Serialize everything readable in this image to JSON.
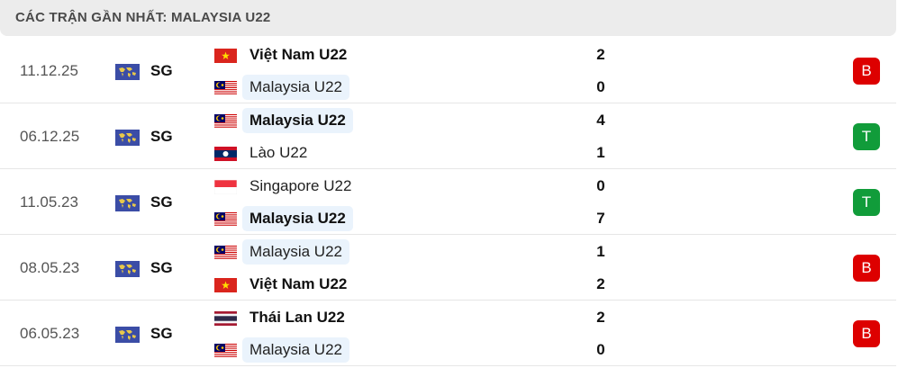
{
  "header": {
    "title": "CÁC TRẬN GẦN NHẤT: MALAYSIA U22"
  },
  "colors": {
    "loss": "#dd0000",
    "win": "#119c3a",
    "highlight": "#eaf3fc",
    "competition_icon": "#3b4da6"
  },
  "matches": [
    {
      "date": "11.12.25",
      "competition": "SG",
      "competition_icon": "world-map-icon",
      "home": {
        "name": "Việt Nam U22",
        "flag": "vn",
        "score": "2",
        "bold": true,
        "highlight": false
      },
      "away": {
        "name": "Malaysia U22",
        "flag": "my",
        "score": "0",
        "bold": false,
        "highlight": true
      },
      "result": "B",
      "result_color": "#dd0000"
    },
    {
      "date": "06.12.25",
      "competition": "SG",
      "competition_icon": "world-map-icon",
      "home": {
        "name": "Malaysia U22",
        "flag": "my",
        "score": "4",
        "bold": true,
        "highlight": true
      },
      "away": {
        "name": "Lào U22",
        "flag": "la",
        "score": "1",
        "bold": false,
        "highlight": false
      },
      "result": "T",
      "result_color": "#119c3a"
    },
    {
      "date": "11.05.23",
      "competition": "SG",
      "competition_icon": "world-map-icon",
      "home": {
        "name": "Singapore U22",
        "flag": "sg",
        "score": "0",
        "bold": false,
        "highlight": false
      },
      "away": {
        "name": "Malaysia U22",
        "flag": "my",
        "score": "7",
        "bold": true,
        "highlight": true
      },
      "result": "T",
      "result_color": "#119c3a"
    },
    {
      "date": "08.05.23",
      "competition": "SG",
      "competition_icon": "world-map-icon",
      "home": {
        "name": "Malaysia U22",
        "flag": "my",
        "score": "1",
        "bold": false,
        "highlight": true
      },
      "away": {
        "name": "Việt Nam U22",
        "flag": "vn",
        "score": "2",
        "bold": true,
        "highlight": false
      },
      "result": "B",
      "result_color": "#dd0000"
    },
    {
      "date": "06.05.23",
      "competition": "SG",
      "competition_icon": "world-map-icon",
      "home": {
        "name": "Thái Lan U22",
        "flag": "th",
        "score": "2",
        "bold": true,
        "highlight": false
      },
      "away": {
        "name": "Malaysia U22",
        "flag": "my",
        "score": "0",
        "bold": false,
        "highlight": true
      },
      "result": "B",
      "result_color": "#dd0000"
    }
  ]
}
